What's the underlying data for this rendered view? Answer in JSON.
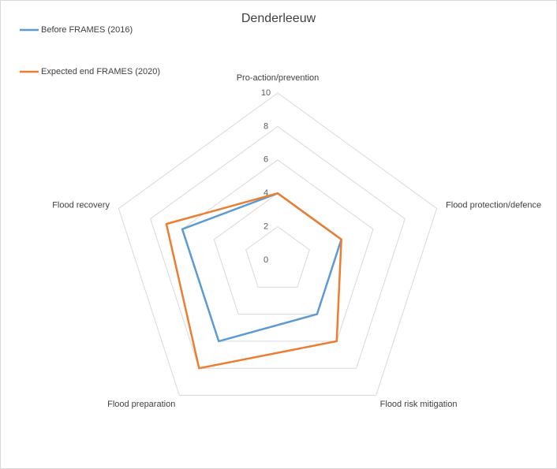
{
  "chart_data": {
    "type": "radar",
    "title": "Denderleeuw",
    "categories": [
      "Pro-action/prevention",
      "Flood protection/defence",
      "Flood risk mitigation",
      "Flood preparation",
      "Flood recovery"
    ],
    "series": [
      {
        "name": "Before FRAMES (2016)",
        "color": "#5b9bd5",
        "values": [
          4,
          4,
          4,
          6,
          6
        ]
      },
      {
        "name": "Expected end FRAMES (2020)",
        "color": "#ed7d31",
        "values": [
          4,
          4,
          6,
          8,
          7
        ]
      }
    ],
    "ylim": [
      0,
      10
    ],
    "yticks": [
      0,
      2,
      4,
      6,
      8,
      10
    ],
    "grid": true,
    "legend": "top-left"
  }
}
